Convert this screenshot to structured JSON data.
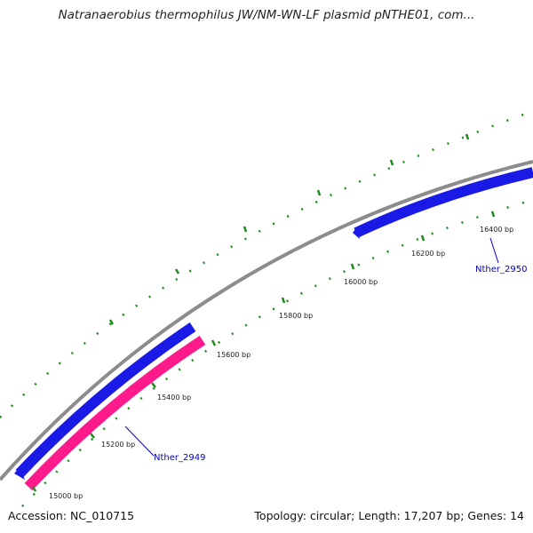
{
  "title": "Natranaerobius thermophilus JW/NM-WN-LF plasmid pNTHE01, com...",
  "footer": {
    "accession": "Accession: NC_010715",
    "summary": "Topology: circular; Length: 17,207 bp; Genes: 14"
  },
  "colors": {
    "backbone": "#8c8c8c",
    "forward_gene": "#1a1ae6",
    "reverse_gene": "#ff1a8c",
    "tick": "#1e8a1e",
    "gene_label": "#0000cc",
    "leader": "#0000cc"
  },
  "ticks": [
    {
      "label": "15000 bp"
    },
    {
      "label": "15200 bp"
    },
    {
      "label": "15400 bp"
    },
    {
      "label": "15600 bp"
    },
    {
      "label": "15800 bp"
    },
    {
      "label": "16000 bp"
    },
    {
      "label": "16200 bp"
    },
    {
      "label": "16400 bp"
    }
  ],
  "genes": [
    {
      "name": "Nther_2949",
      "strand": "reverse"
    },
    {
      "name": "Nther_2950",
      "strand": "forward"
    }
  ]
}
